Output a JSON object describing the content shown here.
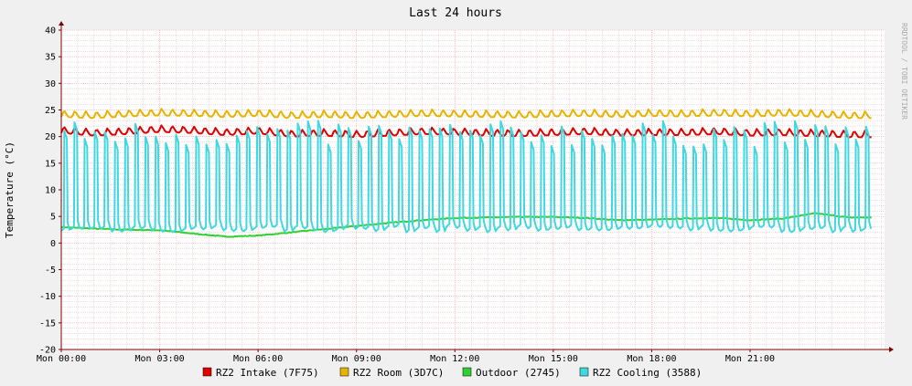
{
  "watermark": "RRDTOOL / TOBI OETIKER",
  "colors": {
    "background": "#f0f0f0",
    "canvas": "#ffffff",
    "grid_major": "#ff9f9f",
    "grid_minor": "#e6b8b8",
    "axis": "#800000",
    "text": "#000000"
  },
  "chart_data": {
    "type": "line",
    "title": "Last 24 hours",
    "ylabel": "Temperature (°C)",
    "xlabel": "",
    "ylim": [
      -20,
      40
    ],
    "xlim_hours": [
      0,
      25.1
    ],
    "y_ticks": [
      40,
      35,
      30,
      25,
      20,
      15,
      10,
      5,
      0,
      -5,
      -10,
      -15,
      -20
    ],
    "x_ticks": [
      {
        "hour": 0,
        "label": "Mon 00:00"
      },
      {
        "hour": 3,
        "label": "Mon 03:00"
      },
      {
        "hour": 6,
        "label": "Mon 06:00"
      },
      {
        "hour": 9,
        "label": "Mon 09:00"
      },
      {
        "hour": 12,
        "label": "Mon 12:00"
      },
      {
        "hour": 15,
        "label": "Mon 15:00"
      },
      {
        "hour": 18,
        "label": "Mon 18:00"
      },
      {
        "hour": 21,
        "label": "Mon 21:00"
      }
    ],
    "grid": true,
    "legend_position": "bottom",
    "series": [
      {
        "name": "RZ2 Intake (7F75)",
        "color": "#e00000",
        "x": [
          0,
          1,
          2,
          3,
          4,
          5,
          6,
          7,
          8,
          9,
          10,
          11,
          12,
          13,
          14,
          15,
          16,
          17,
          18,
          19,
          20,
          21,
          22,
          23,
          24
        ],
        "y": [
          21,
          20.5,
          20.8,
          21.2,
          21,
          20.6,
          20.9,
          20.3,
          20.5,
          20.2,
          20.5,
          20.8,
          20.7,
          20.5,
          20.4,
          20.6,
          20.8,
          20.5,
          20.6,
          20.6,
          20.8,
          20.5,
          20.6,
          20.4,
          20.2
        ]
      },
      {
        "name": "RZ2 Room (3D7C)",
        "color": "#e6b400",
        "x": [
          0,
          1,
          2,
          3,
          4,
          5,
          6,
          7,
          8,
          9,
          10,
          11,
          12,
          13,
          14,
          15,
          16,
          17,
          18,
          19,
          20,
          21,
          22,
          23,
          24
        ],
        "y": [
          24,
          23.8,
          24.1,
          24.3,
          24.2,
          24,
          24.2,
          23.8,
          24,
          23.8,
          24,
          24.2,
          24.1,
          24,
          23.9,
          24.1,
          24.2,
          24,
          24.2,
          24.1,
          24.3,
          24.1,
          24.3,
          24.1,
          23.8
        ]
      },
      {
        "name": "Outdoor (2745)",
        "color": "#30d030",
        "x": [
          0,
          1,
          2,
          3,
          4,
          5,
          6,
          7,
          8,
          9,
          10,
          11,
          12,
          13,
          14,
          15,
          16,
          17,
          18,
          19,
          20,
          21,
          22,
          23,
          24
        ],
        "y": [
          3,
          2.7,
          2.5,
          2.4,
          1.8,
          1.2,
          1.4,
          2.0,
          2.6,
          3.2,
          3.8,
          4.3,
          4.7,
          4.8,
          4.9,
          4.9,
          4.7,
          4.3,
          4.4,
          4.6,
          4.7,
          4.3,
          4.6,
          5.6,
          4.8
        ]
      },
      {
        "name": "RZ2 Cooling (3588)",
        "color": "#40d8e0",
        "x": [
          0,
          1,
          2,
          3,
          4,
          5,
          6,
          7,
          8,
          9,
          10,
          11,
          12,
          13,
          14,
          15,
          16,
          17,
          18,
          19,
          20,
          21,
          22,
          23,
          24
        ],
        "y": [
          3,
          12,
          3,
          21,
          12,
          2,
          20,
          12,
          2,
          20,
          12,
          2,
          21,
          12,
          2,
          20,
          12,
          2,
          21,
          12,
          2,
          20,
          12,
          2,
          20
        ],
        "baseline": 2,
        "peak": 21,
        "cycles_per_day": 78
      }
    ]
  }
}
